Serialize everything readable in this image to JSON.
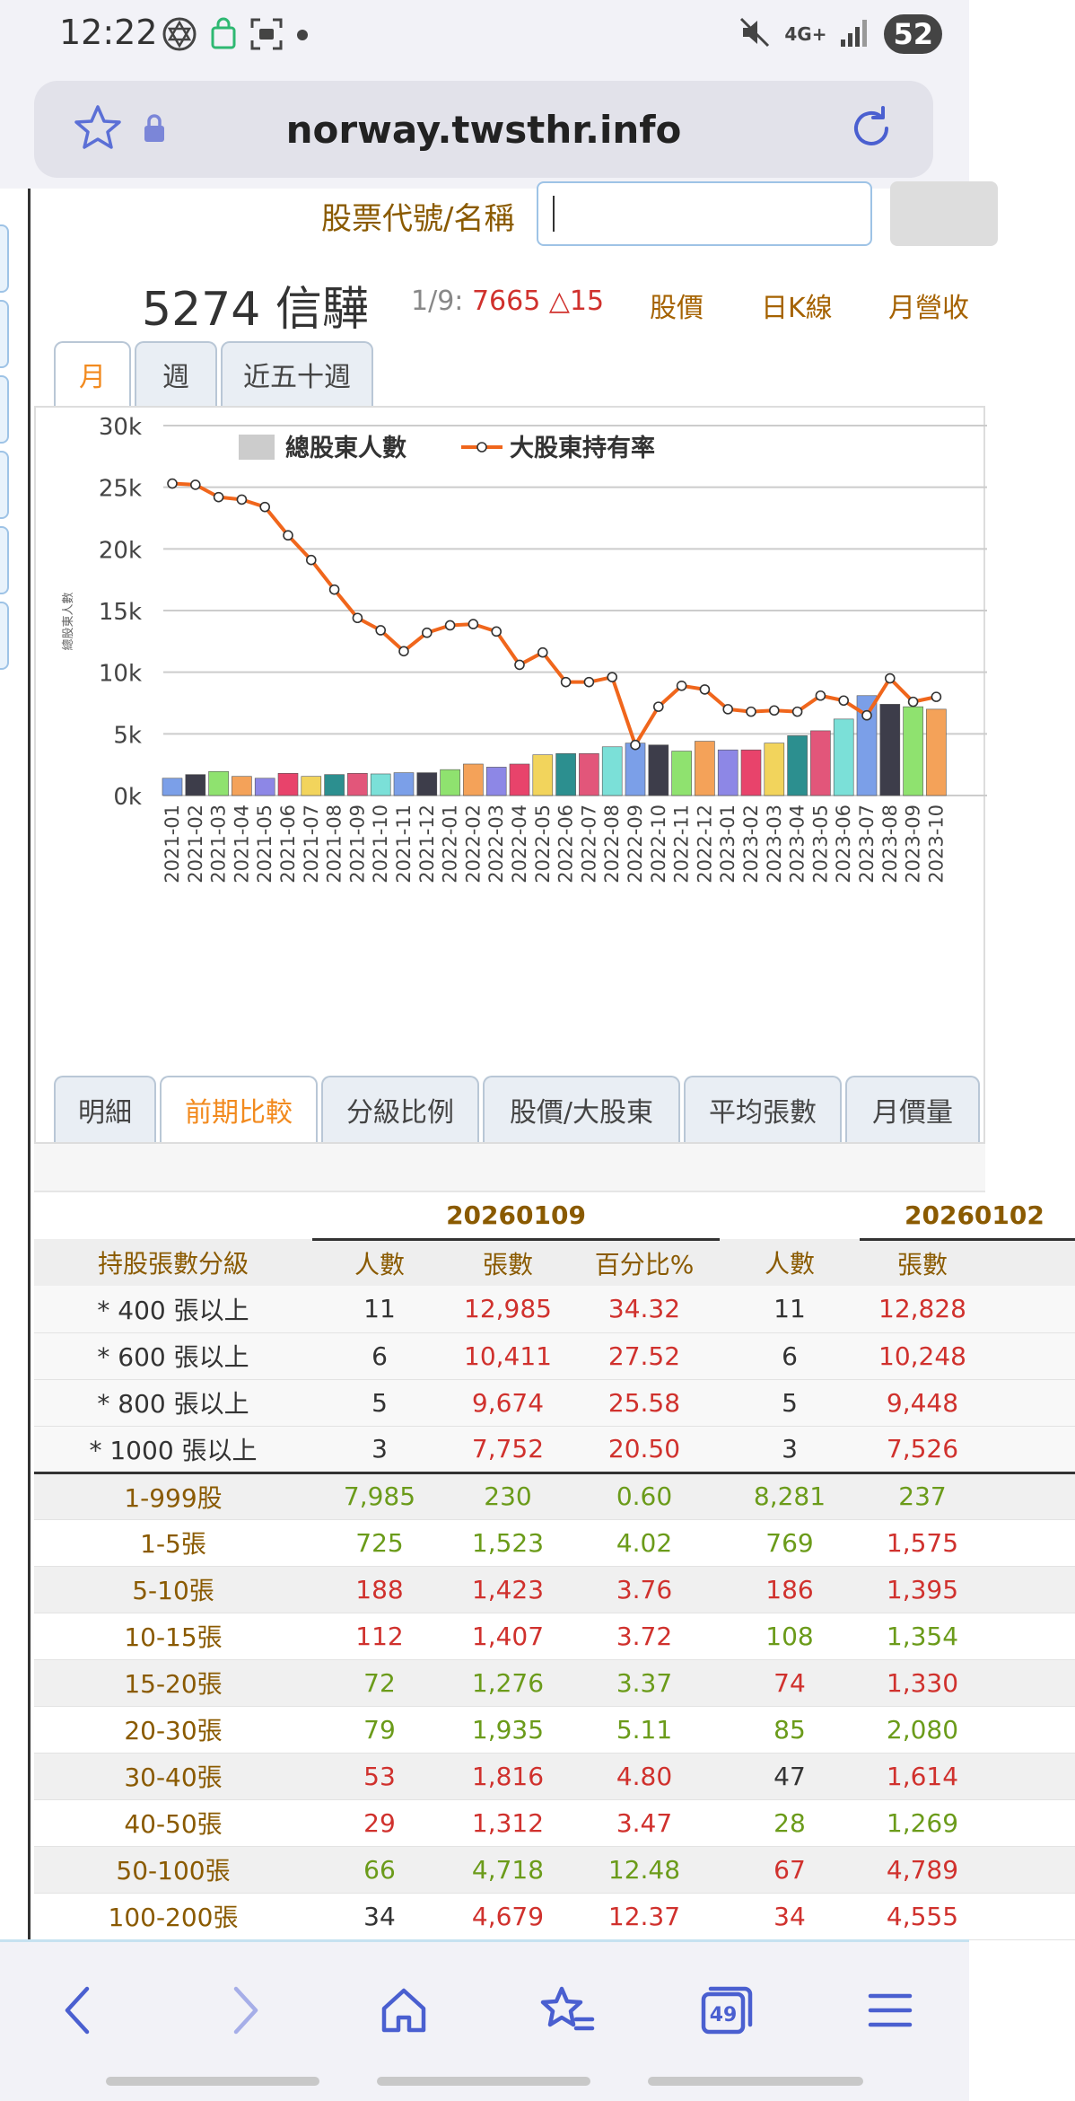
{
  "status_bar": {
    "time": "12:22",
    "network": "4G+",
    "battery": "52"
  },
  "browser": {
    "url": "norway.twsthr.info",
    "tabs_count": "49"
  },
  "search": {
    "label": "股票代號/名稱",
    "value": ""
  },
  "stock": {
    "title": "5274 信驊",
    "quote_date": "1/9:",
    "quote_price": "7665",
    "quote_change": "△15",
    "links": [
      "股價",
      "日K線",
      "月營收"
    ]
  },
  "period_tabs": [
    "月",
    "週",
    "近五十週"
  ],
  "chart_data": {
    "type": "bar",
    "categories": [
      "2021-01",
      "2021-02",
      "2021-03",
      "2021-04",
      "2021-05",
      "2021-06",
      "2021-07",
      "2021-08",
      "2021-09",
      "2021-10",
      "2021-11",
      "2021-12",
      "2022-01",
      "2022-02",
      "2022-03",
      "2022-04",
      "2022-05",
      "2022-06",
      "2022-07",
      "2022-08",
      "2022-09",
      "2022-10",
      "2022-11",
      "2022-12",
      "2023-01",
      "2023-02",
      "2023-03",
      "2023-04",
      "2023-05",
      "2023-06",
      "2023-07",
      "2023-08",
      "2023-09",
      "2023-10"
    ],
    "series": [
      {
        "name": "總股東人數",
        "type": "bar",
        "values": [
          1400,
          1700,
          1950,
          1550,
          1400,
          1800,
          1550,
          1700,
          1800,
          1750,
          1850,
          1850,
          2100,
          2550,
          2300,
          2550,
          3300,
          3400,
          3400,
          3950,
          4250,
          4100,
          3600,
          4400,
          3700,
          3700,
          4250,
          4850,
          5250,
          6200,
          8100,
          7400,
          7200,
          7000
        ]
      },
      {
        "name": "大股東持有率",
        "type": "line",
        "values": [
          25300,
          25200,
          24200,
          24000,
          23400,
          21100,
          19100,
          16700,
          14400,
          13400,
          11700,
          13200,
          13800,
          13900,
          13300,
          10600,
          11600,
          9200,
          9200,
          9600,
          4100,
          7200,
          8900,
          8600,
          7000,
          6800,
          6900,
          6800,
          8100,
          7700,
          6500,
          9500,
          7600,
          8000
        ]
      }
    ],
    "y_ticks": [
      "0k",
      "5k",
      "10k",
      "15k",
      "20k",
      "25k",
      "30k"
    ],
    "ylim": [
      0,
      30000
    ],
    "ylabel": "總股東人數",
    "legend_position": "top",
    "colors": {
      "bars": [
        "#7b9fe8",
        "#3d3d4a",
        "#8fe26f",
        "#f4a259",
        "#8d87e6",
        "#e8436b",
        "#f2d45c",
        "#2c8f8f",
        "#e2567a",
        "#7be0d8"
      ],
      "line": "#f0661c",
      "grid": "#cccccc"
    }
  },
  "section_tabs": [
    "明細",
    "前期比較",
    "分級比例",
    "股價/大股東",
    "平均張數",
    "月價量"
  ],
  "table": {
    "dates": [
      "20260109",
      "20260102"
    ],
    "headers": [
      "持股張數分級",
      "人數",
      "張數",
      "百分比%",
      "人數",
      "張數"
    ],
    "summary_rows": [
      {
        "label": "* 400 張以上",
        "cells": [
          [
            "11",
            "dark"
          ],
          [
            "12,985",
            "red"
          ],
          [
            "34.32",
            "red"
          ],
          [
            "11",
            "dark"
          ],
          [
            "12,828",
            "red"
          ]
        ]
      },
      {
        "label": "* 600 張以上",
        "cells": [
          [
            "6",
            "dark"
          ],
          [
            "10,411",
            "red"
          ],
          [
            "27.52",
            "red"
          ],
          [
            "6",
            "dark"
          ],
          [
            "10,248",
            "red"
          ]
        ]
      },
      {
        "label": "* 800 張以上",
        "cells": [
          [
            "5",
            "dark"
          ],
          [
            "9,674",
            "red"
          ],
          [
            "25.58",
            "red"
          ],
          [
            "5",
            "dark"
          ],
          [
            "9,448",
            "red"
          ]
        ]
      },
      {
        "label": "* 1000 張以上",
        "cells": [
          [
            "3",
            "dark"
          ],
          [
            "7,752",
            "red"
          ],
          [
            "20.50",
            "red"
          ],
          [
            "3",
            "dark"
          ],
          [
            "7,526",
            "red"
          ]
        ]
      }
    ],
    "rows": [
      {
        "label": "1-999股",
        "cells": [
          [
            "7,985",
            "green"
          ],
          [
            "230",
            "green"
          ],
          [
            "0.60",
            "green"
          ],
          [
            "8,281",
            "green"
          ],
          [
            "237",
            "green"
          ]
        ]
      },
      {
        "label": "1-5張",
        "cells": [
          [
            "725",
            "green"
          ],
          [
            "1,523",
            "green"
          ],
          [
            "4.02",
            "green"
          ],
          [
            "769",
            "green"
          ],
          [
            "1,575",
            "red"
          ]
        ]
      },
      {
        "label": "5-10張",
        "cells": [
          [
            "188",
            "red"
          ],
          [
            "1,423",
            "red"
          ],
          [
            "3.76",
            "red"
          ],
          [
            "186",
            "red"
          ],
          [
            "1,395",
            "red"
          ]
        ]
      },
      {
        "label": "10-15張",
        "cells": [
          [
            "112",
            "red"
          ],
          [
            "1,407",
            "red"
          ],
          [
            "3.72",
            "red"
          ],
          [
            "108",
            "green"
          ],
          [
            "1,354",
            "green"
          ]
        ]
      },
      {
        "label": "15-20張",
        "cells": [
          [
            "72",
            "green"
          ],
          [
            "1,276",
            "green"
          ],
          [
            "3.37",
            "green"
          ],
          [
            "74",
            "red"
          ],
          [
            "1,330",
            "red"
          ]
        ]
      },
      {
        "label": "20-30張",
        "cells": [
          [
            "79",
            "green"
          ],
          [
            "1,935",
            "green"
          ],
          [
            "5.11",
            "green"
          ],
          [
            "85",
            "green"
          ],
          [
            "2,080",
            "green"
          ]
        ]
      },
      {
        "label": "30-40張",
        "cells": [
          [
            "53",
            "red"
          ],
          [
            "1,816",
            "red"
          ],
          [
            "4.80",
            "red"
          ],
          [
            "47",
            "dark"
          ],
          [
            "1,614",
            "red"
          ]
        ]
      },
      {
        "label": "40-50張",
        "cells": [
          [
            "29",
            "red"
          ],
          [
            "1,312",
            "red"
          ],
          [
            "3.47",
            "red"
          ],
          [
            "28",
            "green"
          ],
          [
            "1,269",
            "green"
          ]
        ]
      },
      {
        "label": "50-100張",
        "cells": [
          [
            "66",
            "green"
          ],
          [
            "4,718",
            "green"
          ],
          [
            "12.48",
            "green"
          ],
          [
            "67",
            "red"
          ],
          [
            "4,789",
            "red"
          ]
        ]
      },
      {
        "label": "100-200張",
        "cells": [
          [
            "34",
            "dark"
          ],
          [
            "4,679",
            "red"
          ],
          [
            "12.37",
            "red"
          ],
          [
            "34",
            "red"
          ],
          [
            "4,555",
            "red"
          ]
        ]
      }
    ]
  }
}
